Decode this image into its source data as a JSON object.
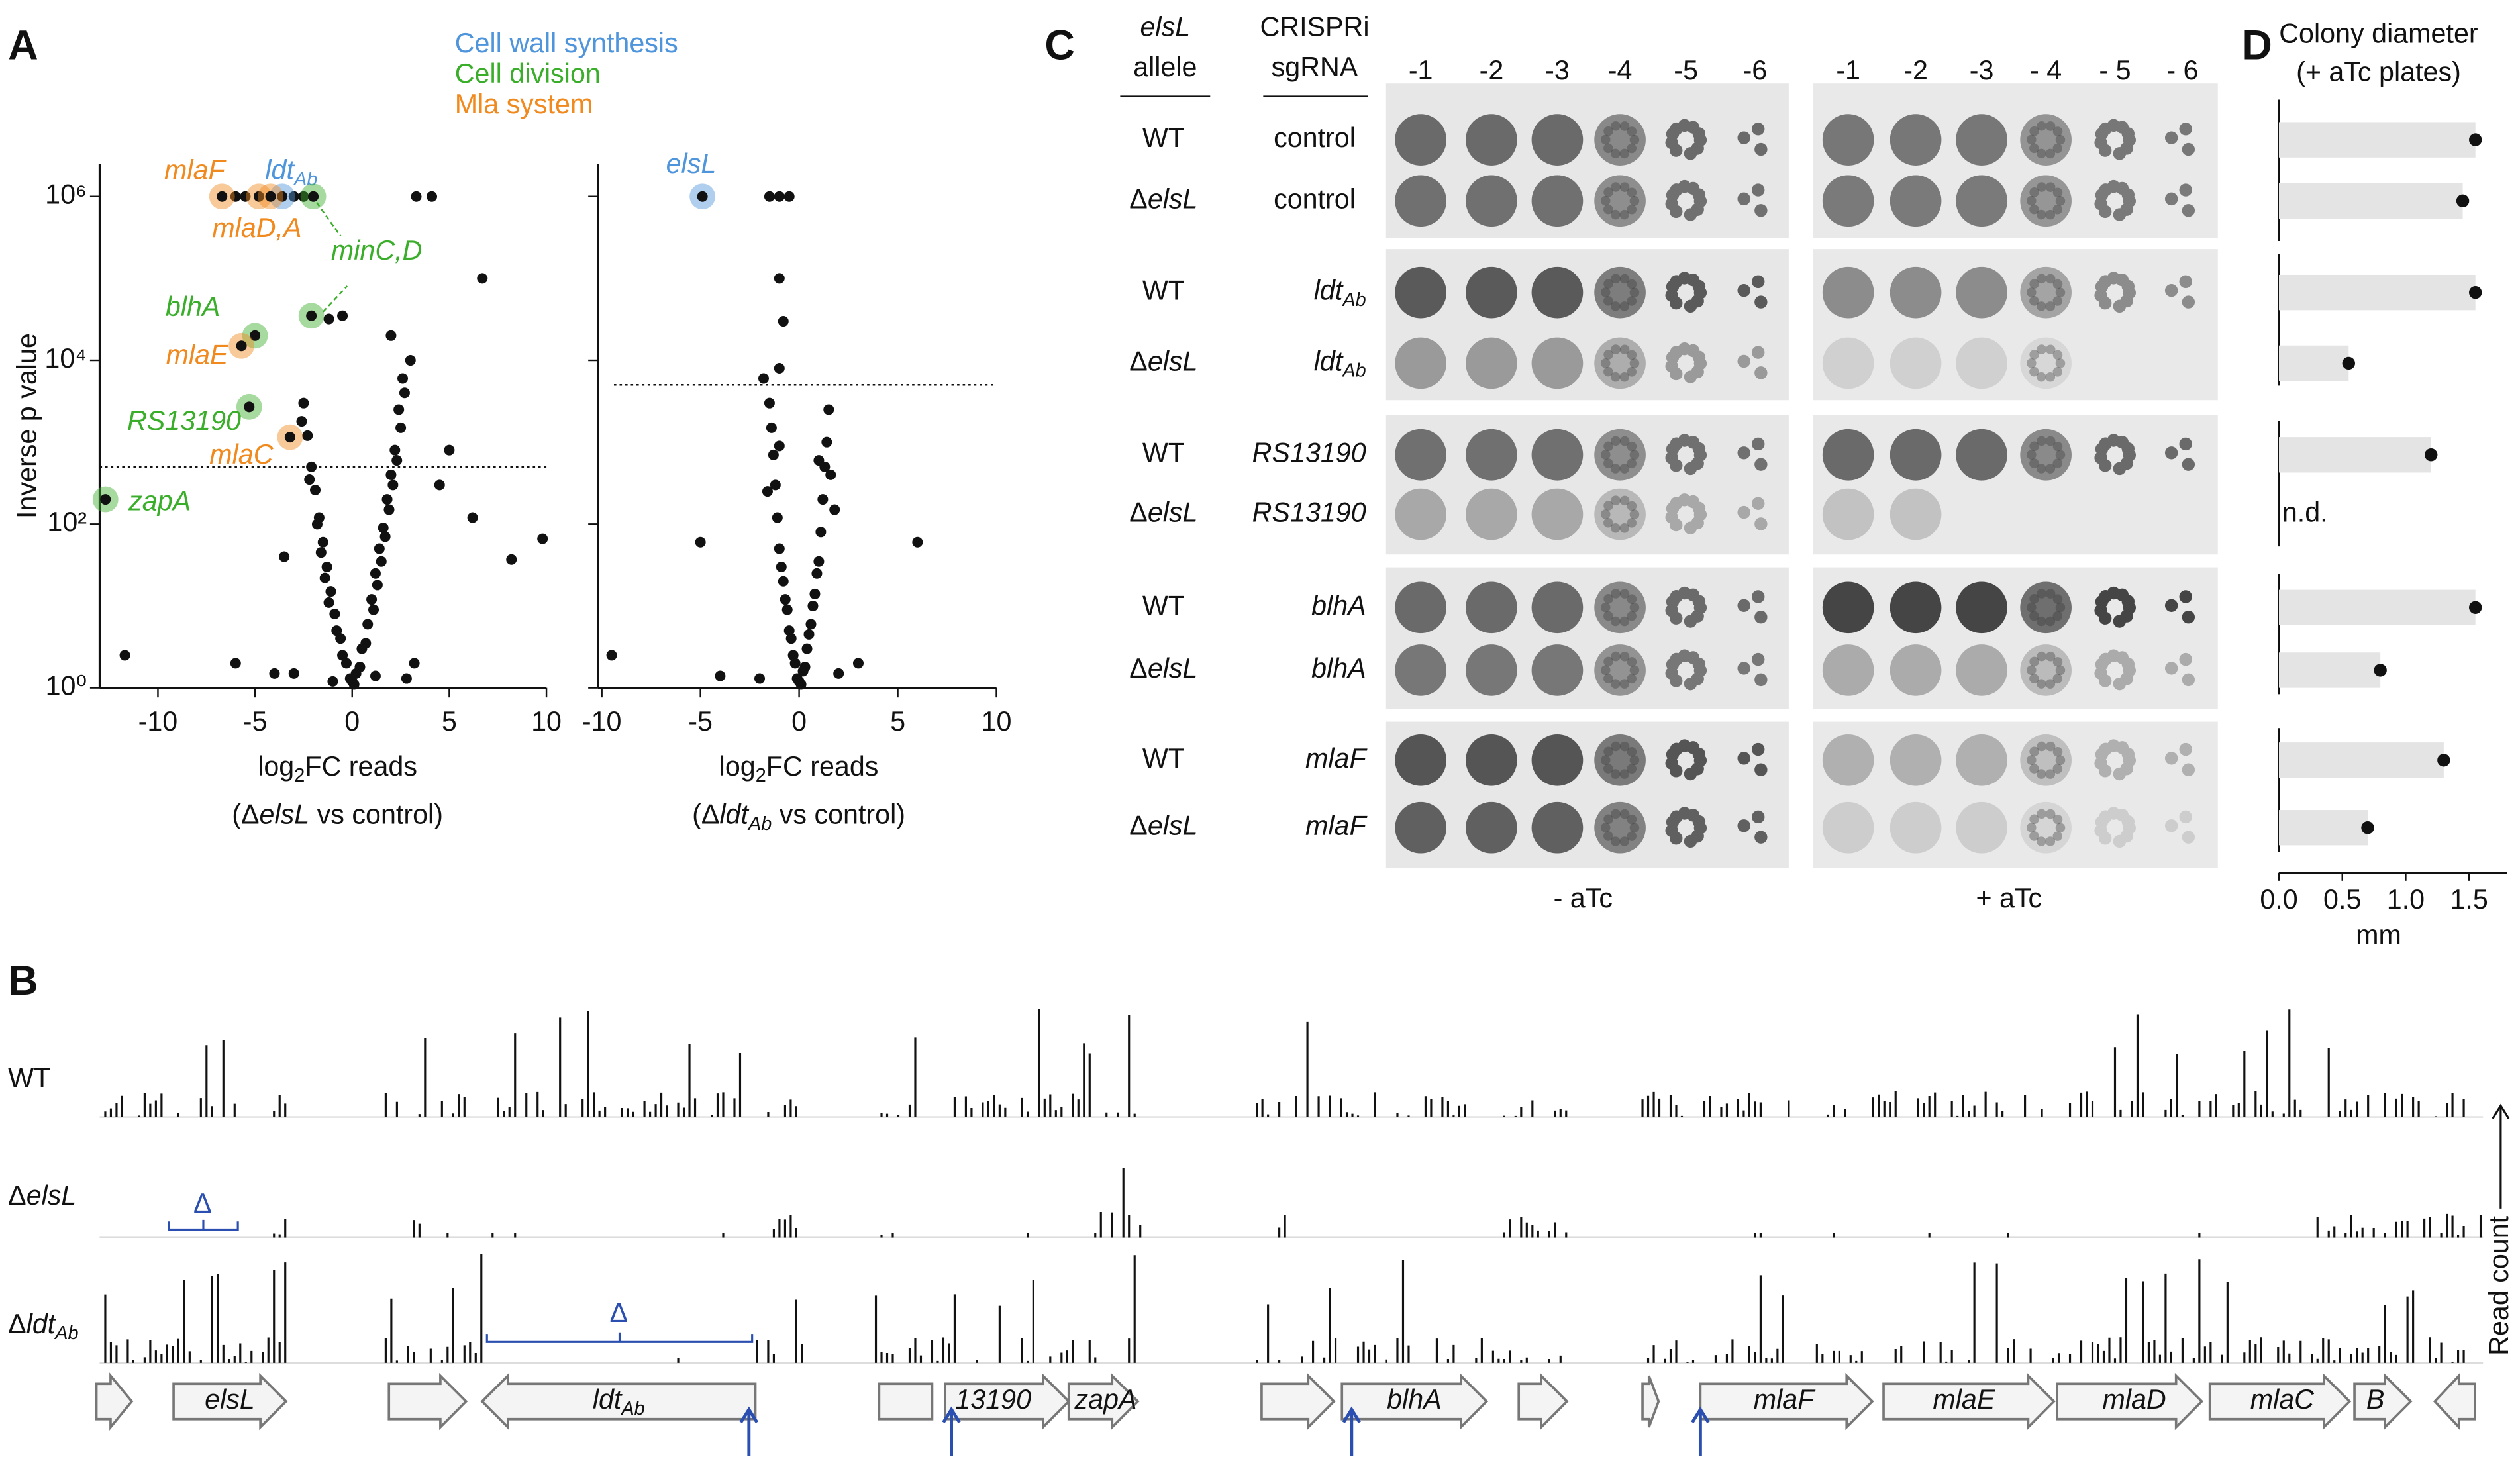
{
  "panel_labels": [
    "A",
    "B",
    "C",
    "D"
  ],
  "legend": [
    {
      "name": "Cell wall synthesis",
      "color": "#4f95dc"
    },
    {
      "name": "Cell division",
      "color": "#3aae2a"
    },
    {
      "name": "Mla system",
      "color": "#f08a1e"
    }
  ],
  "chart_data": [
    {
      "type": "scatter",
      "ylabel": "Inverse p value",
      "xlabel": [
        "log",
        "2",
        "FC reads"
      ],
      "xlabel_line2": [
        "(Δ",
        "elsL",
        " vs control)"
      ],
      "xlim": [
        -13,
        10
      ],
      "ylim": [
        1,
        2500000
      ],
      "log_y": true,
      "xticks": [
        -10,
        -5,
        0,
        5,
        10
      ],
      "yticks": [
        {
          "value": 1,
          "label": "10⁰"
        },
        {
          "value": 100,
          "label": "10²"
        },
        {
          "value": 10000,
          "label": "10⁴"
        },
        {
          "value": 1000000,
          "label": "10⁶"
        }
      ],
      "threshold": 500,
      "points": {
        "x": [
          0,
          0.2,
          -0.3,
          0.5,
          -0.6,
          0.8,
          -0.9,
          1.0,
          -1.1,
          1.2,
          -1.3,
          1.4,
          -1.5,
          1.6,
          -1.7,
          1.8,
          -1.9,
          2.0,
          -2.1,
          2.2,
          -2.3,
          2.4,
          -2.5,
          2.6,
          0.1,
          -0.1,
          0.4,
          -0.5,
          0.7,
          -0.8,
          1.1,
          -1.2,
          1.3,
          -1.4,
          1.5,
          -1.6,
          1.7,
          -1.8,
          1.9,
          2.1,
          -2.2,
          2.3,
          2.5,
          -2.6,
          2.7,
          3.0,
          2.0,
          -1.0,
          1.2,
          -3.0,
          3.2,
          2.8,
          4.5,
          5.0,
          -3.5,
          -4.0,
          -6,
          -11.7,
          9.8,
          8.2,
          6.2,
          6.7,
          3.3,
          4.1,
          -6.0,
          -5.5,
          -3.0,
          -2.5,
          -0.5,
          -1.2
        ],
        "y": [
          1.2,
          1.5,
          2,
          3,
          4,
          6,
          8,
          12,
          15,
          25,
          30,
          50,
          60,
          90,
          120,
          200,
          260,
          400,
          500,
          800,
          1200,
          2500,
          3000,
          6000,
          1.1,
          1.3,
          1.8,
          2.5,
          3.5,
          5,
          9,
          11,
          18,
          22,
          35,
          45,
          70,
          100,
          150,
          300,
          350,
          600,
          1500,
          1800,
          4000,
          10000,
          20000,
          1.2,
          1.4,
          1.5,
          2,
          1.3,
          300,
          800,
          40,
          1.5,
          2,
          2.5,
          66,
          37,
          120,
          100000,
          1000000,
          1000000,
          1000000,
          1000000,
          1000000,
          1000000,
          35000,
          32000
        ]
      },
      "highlights": [
        {
          "label": [
            "mlaF"
          ],
          "color": "#f08a1e",
          "x": [
            -6.7
          ],
          "y": [
            1000000
          ]
        },
        {
          "label": [
            "ldt",
            "Ab"
          ],
          "color": "#4f95dc",
          "x": [
            -3.6
          ],
          "y": [
            1000000
          ]
        },
        {
          "label": [
            "mlaD,A"
          ],
          "color": "#f08a1e",
          "x": [
            -4.8,
            -4.2
          ],
          "y": [
            1000000,
            1000000
          ]
        },
        {
          "label": [
            "minC,D"
          ],
          "color": "#3aae2a",
          "x": [
            -2.0,
            -2.1
          ],
          "y": [
            1000000,
            35000
          ]
        },
        {
          "label": [
            "blhA"
          ],
          "color": "#3aae2a",
          "x": [
            -5.0
          ],
          "y": [
            20000
          ]
        },
        {
          "label": [
            "mlaE"
          ],
          "color": "#f08a1e",
          "x": [
            -5.7
          ],
          "y": [
            15000
          ]
        },
        {
          "label": [
            "RS13190"
          ],
          "color": "#3aae2a",
          "x": [
            -5.3
          ],
          "y": [
            2700
          ]
        },
        {
          "label": [
            "mlaC"
          ],
          "color": "#f08a1e",
          "x": [
            -3.2
          ],
          "y": [
            1150
          ]
        },
        {
          "label": [
            "zapA"
          ],
          "color": "#3aae2a",
          "x": [
            -12.7
          ],
          "y": [
            200
          ]
        }
      ]
    },
    {
      "type": "scatter",
      "xlabel": [
        "log",
        "2",
        "FC reads"
      ],
      "xlabel_line2": [
        "(Δ",
        "ldt",
        "Ab",
        " vs control)"
      ],
      "xlim": [
        -10.2,
        10
      ],
      "ylim": [
        1,
        2500000
      ],
      "log_y": true,
      "xticks": [
        -10,
        -5,
        0,
        5,
        10
      ],
      "yticks": [
        1,
        100,
        10000,
        1000000
      ],
      "ytick_labels": false,
      "threshold": 5000,
      "points": {
        "x": [
          0,
          0.2,
          -0.2,
          0.4,
          -0.4,
          0.6,
          -0.6,
          0.8,
          -0.8,
          1.0,
          -1.0,
          1.1,
          -1.1,
          1.2,
          -1.2,
          1.3,
          -1.3,
          1.4,
          -1.4,
          1.5,
          -1.5,
          0.1,
          -0.1,
          0.3,
          -0.3,
          0.5,
          -0.5,
          0.7,
          -0.7,
          0.9,
          -0.9,
          1.6,
          -1.6,
          1.0,
          -1.0,
          2,
          -2,
          3,
          -9.5,
          6,
          -5,
          -4,
          -1.5,
          -1.0,
          -0.5,
          -1.0,
          -0.8,
          -1.0,
          -1.8,
          1.8
        ],
        "y": [
          1.2,
          1.6,
          2,
          3,
          4,
          6,
          9,
          14,
          20,
          35,
          50,
          80,
          120,
          200,
          300,
          500,
          700,
          1000,
          1500,
          2500,
          3000,
          1.1,
          1.3,
          1.8,
          2.5,
          4.5,
          5,
          10,
          12,
          25,
          30,
          400,
          250,
          600,
          900,
          1.5,
          1.3,
          2,
          2.5,
          60,
          60,
          1.4,
          1000000,
          1000000,
          1000000,
          100000,
          30000,
          8000,
          6000,
          150
        ]
      },
      "highlights": [
        {
          "label": [
            "elsL"
          ],
          "color": "#4f95dc",
          "x": [
            -4.9
          ],
          "y": [
            1000000
          ]
        }
      ]
    },
    {
      "type": "bar",
      "orientation": "horizontal",
      "title": [
        "Colony diameter",
        "(+ aTc plates)"
      ],
      "xlabel": "mm",
      "xlim": [
        0,
        1.8
      ],
      "xticks": [
        {
          "value": 0,
          "label": "0.0"
        },
        {
          "value": 0.5,
          "label": "0.5"
        },
        {
          "value": 1,
          "label": "1.0"
        },
        {
          "value": 1.5,
          "label": "1.5"
        }
      ],
      "values": [
        1.55,
        1.45,
        1.55,
        0.55,
        1.2,
        null,
        1.55,
        0.8,
        1.3,
        0.7
      ],
      "value_labels": [
        null,
        null,
        null,
        null,
        null,
        "n.d.",
        null,
        null,
        null,
        null
      ],
      "color": "#e4e4e4"
    }
  ],
  "plates": {
    "allele_header": [
      "elsL",
      "allele"
    ],
    "sgrna_header": [
      "CRISPRi",
      "sgRNA"
    ],
    "dilutions_minus": [
      "-1",
      "-2",
      "-3",
      "-4",
      "-5",
      "-6"
    ],
    "dilutions_plus": [
      "-1",
      "-2",
      "-3",
      "- 4",
      "- 5",
      "- 6"
    ],
    "conditions": [
      "- aTc",
      "+ aTc"
    ],
    "rows": [
      {
        "allele": [
          "WT"
        ],
        "sgrna": [
          "control"
        ]
      },
      {
        "allele": [
          "Δ",
          "elsL"
        ],
        "sgrna": [
          "control"
        ]
      },
      {
        "allele": [
          "WT"
        ],
        "sgrna": [
          "ldt",
          "Ab"
        ]
      },
      {
        "allele": [
          "Δ",
          "elsL"
        ],
        "sgrna": [
          "ldt",
          "Ab"
        ]
      },
      {
        "allele": [
          "WT"
        ],
        "sgrna": [
          "RS13190"
        ]
      },
      {
        "allele": [
          "Δ",
          "elsL"
        ],
        "sgrna": [
          "RS13190"
        ]
      },
      {
        "allele": [
          "WT"
        ],
        "sgrna": [
          "blhA"
        ]
      },
      {
        "allele": [
          "Δ",
          "elsL"
        ],
        "sgrna": [
          "blhA"
        ]
      },
      {
        "allele": [
          "WT"
        ],
        "sgrna": [
          "mlaF"
        ]
      },
      {
        "allele": [
          "Δ",
          "elsL"
        ],
        "sgrna": [
          "mlaF"
        ]
      }
    ]
  },
  "tracks": {
    "rows": [
      [
        "WT"
      ],
      [
        "Δ",
        "elsL"
      ],
      [
        "Δ",
        "ldt",
        "Ab"
      ]
    ],
    "genes": [
      [
        "elsL"
      ],
      [
        "ldt",
        "Ab"
      ],
      [
        "13190"
      ],
      [
        "zapA"
      ],
      [
        "blhA"
      ],
      [
        "mlaF"
      ],
      [
        "mlaE"
      ],
      [
        "mlaD"
      ],
      [
        "mlaC"
      ],
      [
        "B"
      ]
    ],
    "deletion_marks": [
      "Δ",
      "Δ"
    ],
    "axis_label": "Read count"
  }
}
